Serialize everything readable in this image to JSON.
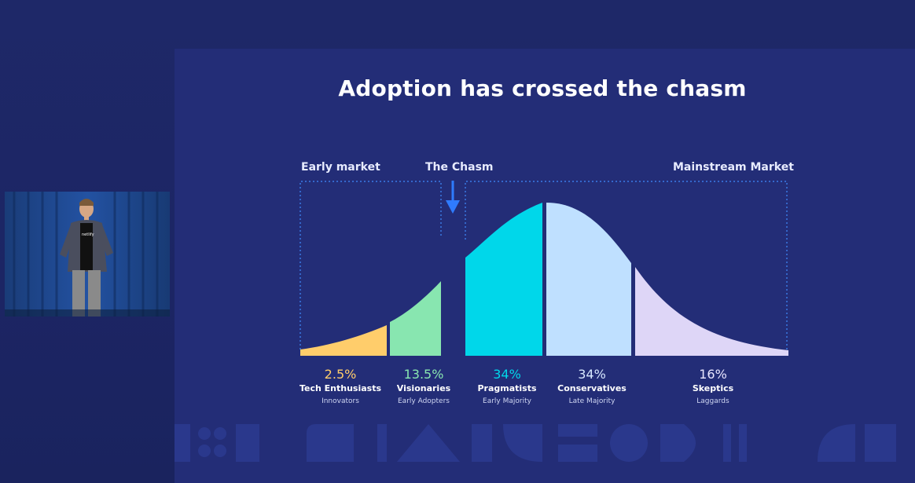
{
  "slide": {
    "title": "Adoption has crossed the chasm",
    "regions": {
      "early_market": "Early market",
      "chasm": "The Chasm",
      "mainstream": "Mainstream Market"
    },
    "segments": [
      {
        "percent": "2.5%",
        "name": "Tech Enthusiasts",
        "sub": "Innovators",
        "color": "#ffcd6b"
      },
      {
        "percent": "13.5%",
        "name": "Visionaries",
        "sub": "Early Adopters",
        "color": "#88e6b0"
      },
      {
        "percent": "34%",
        "name": "Pragmatists",
        "sub": "Early Majority",
        "color": "#00d7ea"
      },
      {
        "percent": "34%",
        "name": "Conservatives",
        "sub": "Late Majority",
        "color": "#bfe0ff"
      },
      {
        "percent": "16%",
        "name": "Skeptics",
        "sub": "Laggards",
        "color": "#ded6f7"
      }
    ],
    "accent_arrow_color": "#2f7bff"
  },
  "presenter": {
    "shirt_text": "netlify"
  }
}
